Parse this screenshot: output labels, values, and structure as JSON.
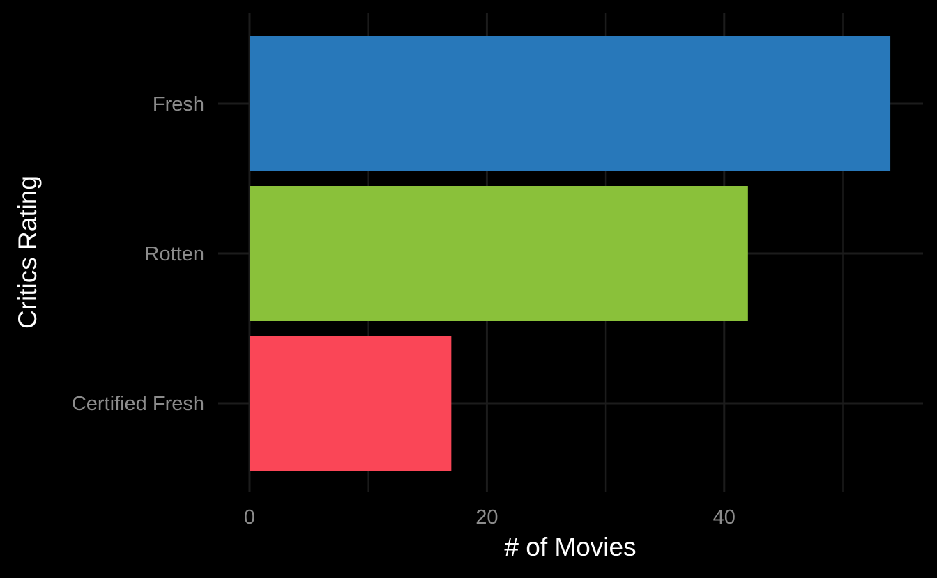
{
  "chart_data": {
    "type": "bar",
    "orientation": "horizontal",
    "categories": [
      "Fresh",
      "Rotten",
      "Certified Fresh"
    ],
    "values": [
      54,
      42,
      17
    ],
    "colors": [
      "#2878BA",
      "#8AC13A",
      "#FA4657"
    ],
    "xlabel": "# of Movies",
    "ylabel": "Critics Rating",
    "xlim": [
      0,
      56
    ],
    "x_ticks": [
      0,
      20,
      40
    ],
    "grid": true,
    "legend": "none",
    "background": "#000000",
    "grid_color": "#1C1C1C",
    "tick_label_color": "#8C8C8C",
    "axis_title_color": "#FFFFFF"
  }
}
